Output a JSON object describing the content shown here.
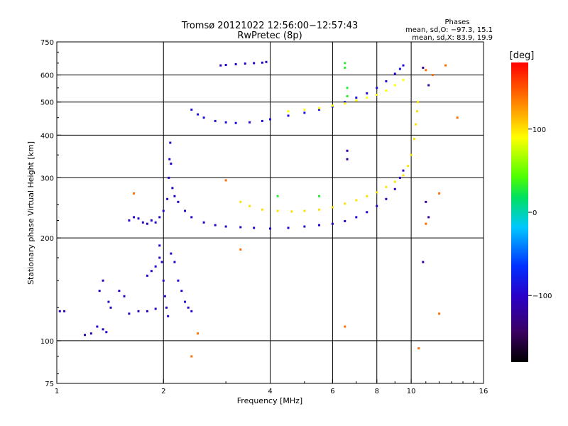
{
  "chart_data": {
    "type": "scatter",
    "title": "Tromsø 20121022 12:56:00−12:57:43",
    "subtitle": "RwPretec (8p)",
    "xlabel": "Frequency [MHz]",
    "ylabel": "Stationary phase Virtual Height [km]",
    "x_scale": "log",
    "y_scale": "log",
    "xlim": [
      1,
      16
    ],
    "ylim": [
      75,
      750
    ],
    "x_ticks": [
      1,
      2,
      4,
      6,
      8,
      10,
      16
    ],
    "x_tick_labels": [
      "1",
      "2",
      "4",
      "6",
      "8",
      "10",
      "16"
    ],
    "y_ticks": [
      75,
      100,
      200,
      300,
      400,
      500,
      600,
      750
    ],
    "y_tick_labels": [
      "75",
      "100",
      "200",
      "300",
      "400",
      "500",
      "600",
      "750"
    ],
    "grid": true,
    "phases_box": {
      "heading": "Phases",
      "line_o": "mean, sd,O: −97.3, 15.1",
      "line_x": "mean, sd,X:  83.9, 19.9"
    },
    "colorbar": {
      "label": "[deg]",
      "range": [
        -180,
        180
      ],
      "ticks": [
        100,
        0,
        -100
      ],
      "tick_labels": [
        "100",
        "0",
        "−100"
      ],
      "colormap": "rainbow (black→violet→blue→cyan→green→yellow→orange→red)"
    },
    "series": [
      {
        "phase_deg": -105,
        "points": [
          [
            1.02,
            122
          ],
          [
            1.05,
            122
          ],
          [
            1.2,
            104
          ],
          [
            1.25,
            105
          ],
          [
            1.3,
            110
          ],
          [
            1.35,
            108
          ],
          [
            1.38,
            106
          ],
          [
            1.32,
            140
          ],
          [
            1.35,
            150
          ],
          [
            1.4,
            130
          ],
          [
            1.42,
            125
          ],
          [
            1.5,
            140
          ],
          [
            1.55,
            135
          ],
          [
            1.6,
            120
          ],
          [
            1.7,
            122
          ],
          [
            1.8,
            122
          ],
          [
            1.9,
            124
          ]
        ]
      },
      {
        "phase_deg": -100,
        "points": [
          [
            1.6,
            225
          ],
          [
            1.65,
            230
          ],
          [
            1.7,
            228
          ],
          [
            1.75,
            222
          ],
          [
            1.8,
            220
          ],
          [
            1.85,
            225
          ],
          [
            1.9,
            222
          ],
          [
            1.95,
            230
          ],
          [
            2.0,
            240
          ],
          [
            2.05,
            260
          ],
          [
            2.07,
            300
          ],
          [
            2.08,
            340
          ],
          [
            2.09,
            380
          ],
          [
            2.1,
            330
          ],
          [
            2.12,
            280
          ],
          [
            2.15,
            265
          ],
          [
            2.2,
            255
          ],
          [
            2.3,
            240
          ],
          [
            2.4,
            230
          ],
          [
            2.6,
            222
          ],
          [
            2.8,
            218
          ],
          [
            3.0,
            216
          ],
          [
            3.3,
            215
          ],
          [
            3.6,
            214
          ],
          [
            4.0,
            213
          ],
          [
            4.5,
            214
          ],
          [
            5.0,
            216
          ],
          [
            5.5,
            218
          ],
          [
            6.0,
            220
          ],
          [
            6.5,
            224
          ],
          [
            7.0,
            230
          ],
          [
            7.5,
            238
          ],
          [
            8.0,
            248
          ],
          [
            8.5,
            260
          ],
          [
            9.0,
            278
          ],
          [
            9.3,
            300
          ],
          [
            9.5,
            315
          ]
        ]
      },
      {
        "phase_deg": -95,
        "points": [
          [
            1.95,
            190
          ],
          [
            1.98,
            170
          ],
          [
            2.0,
            150
          ],
          [
            2.02,
            135
          ],
          [
            2.04,
            125
          ],
          [
            2.06,
            118
          ],
          [
            1.8,
            155
          ],
          [
            1.85,
            160
          ],
          [
            1.9,
            165
          ],
          [
            1.95,
            175
          ],
          [
            2.1,
            180
          ],
          [
            2.15,
            170
          ],
          [
            2.2,
            150
          ],
          [
            2.25,
            140
          ],
          [
            2.3,
            130
          ],
          [
            2.35,
            125
          ],
          [
            2.4,
            122
          ]
        ]
      },
      {
        "phase_deg": -90,
        "points": [
          [
            2.4,
            475
          ],
          [
            2.5,
            460
          ],
          [
            2.6,
            450
          ],
          [
            2.8,
            440
          ],
          [
            3.0,
            436
          ],
          [
            3.2,
            434
          ],
          [
            3.5,
            436
          ],
          [
            3.8,
            440
          ],
          [
            4.0,
            445
          ],
          [
            4.5,
            456
          ],
          [
            5.0,
            465
          ],
          [
            5.5,
            475
          ],
          [
            6.0,
            485
          ],
          [
            6.5,
            500
          ],
          [
            7.0,
            515
          ],
          [
            7.5,
            530
          ],
          [
            8.0,
            550
          ],
          [
            8.5,
            575
          ],
          [
            9.0,
            605
          ],
          [
            9.3,
            625
          ],
          [
            9.5,
            640
          ]
        ]
      },
      {
        "phase_deg": -100,
        "points": [
          [
            2.9,
            640
          ],
          [
            3.0,
            642
          ],
          [
            3.2,
            645
          ],
          [
            3.4,
            648
          ],
          [
            3.6,
            650
          ],
          [
            3.8,
            652
          ],
          [
            3.9,
            655
          ]
        ]
      },
      {
        "phase_deg": 100,
        "points": [
          [
            3.3,
            255
          ],
          [
            3.5,
            248
          ],
          [
            3.8,
            242
          ],
          [
            4.2,
            240
          ],
          [
            4.6,
            239
          ],
          [
            5.0,
            240
          ],
          [
            5.5,
            242
          ],
          [
            6.0,
            246
          ],
          [
            6.5,
            252
          ],
          [
            7.0,
            258
          ],
          [
            7.5,
            265
          ],
          [
            8.0,
            272
          ],
          [
            8.5,
            282
          ],
          [
            9.0,
            292
          ],
          [
            9.5,
            305
          ],
          [
            9.8,
            325
          ],
          [
            10.0,
            350
          ],
          [
            10.2,
            390
          ],
          [
            10.3,
            430
          ],
          [
            10.4,
            470
          ],
          [
            10.45,
            500
          ]
        ]
      },
      {
        "phase_deg": 90,
        "points": [
          [
            4.5,
            470
          ],
          [
            5.0,
            475
          ],
          [
            5.5,
            480
          ],
          [
            6.0,
            488
          ],
          [
            6.5,
            495
          ],
          [
            7.0,
            505
          ],
          [
            7.5,
            515
          ],
          [
            8.0,
            525
          ],
          [
            8.5,
            540
          ],
          [
            9.0,
            560
          ],
          [
            9.5,
            580
          ]
        ]
      },
      {
        "phase_deg": 30,
        "points": [
          [
            6.5,
            650
          ],
          [
            6.5,
            630
          ],
          [
            6.6,
            550
          ],
          [
            6.6,
            520
          ],
          [
            5.5,
            265
          ],
          [
            4.2,
            265
          ]
        ]
      },
      {
        "phase_deg": 140,
        "points": [
          [
            1.65,
            270
          ],
          [
            2.4,
            90
          ],
          [
            2.5,
            105
          ],
          [
            3.3,
            185
          ],
          [
            3.0,
            295
          ],
          [
            6.5,
            110
          ],
          [
            10.5,
            95
          ],
          [
            11.0,
            620
          ],
          [
            11.5,
            600
          ],
          [
            12.0,
            120
          ],
          [
            12.5,
            640
          ],
          [
            13.5,
            450
          ],
          [
            12.0,
            270
          ],
          [
            11.0,
            220
          ]
        ]
      },
      {
        "phase_deg": -120,
        "points": [
          [
            6.6,
            360
          ],
          [
            6.6,
            340
          ],
          [
            10.8,
            630
          ],
          [
            11.2,
            560
          ],
          [
            11.0,
            255
          ],
          [
            11.2,
            230
          ],
          [
            10.8,
            170
          ]
        ]
      }
    ]
  }
}
